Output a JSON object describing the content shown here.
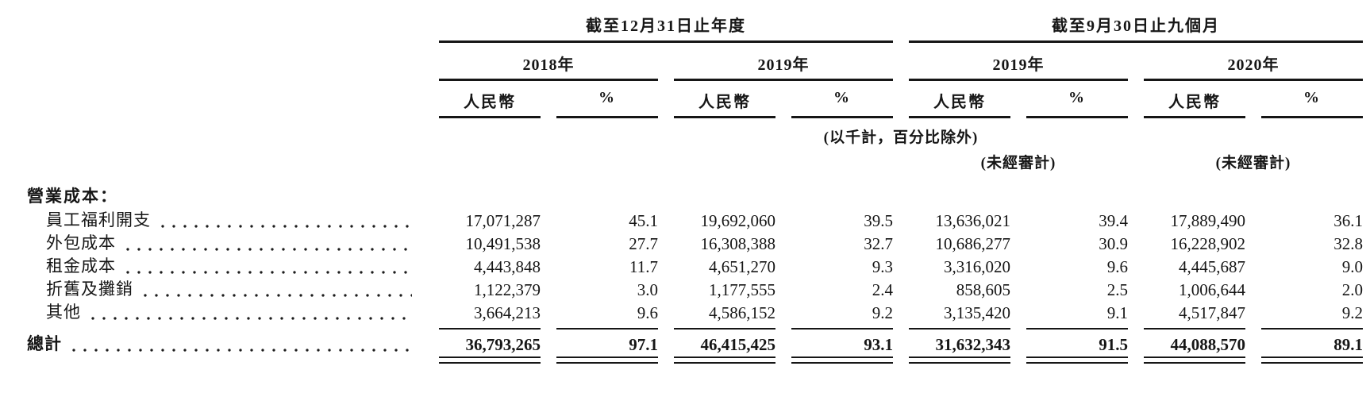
{
  "table": {
    "period_groups": [
      {
        "title": "截至12月31日止年度",
        "years": [
          "2018年",
          "2019年"
        ]
      },
      {
        "title": "截至9月30日止九個月",
        "years": [
          "2019年",
          "2020年"
        ]
      }
    ],
    "column_headers": {
      "currency": "人民幣",
      "percent": "%"
    },
    "notes": {
      "units": "(以千計，百分比除外)",
      "unaudited": "(未經審計)"
    },
    "section_header": "營業成本：",
    "rows": [
      {
        "label": "員工福利開支",
        "values": [
          "17,071,287",
          "45.1",
          "19,692,060",
          "39.5",
          "13,636,021",
          "39.4",
          "17,889,490",
          "36.1"
        ]
      },
      {
        "label": "外包成本",
        "values": [
          "10,491,538",
          "27.7",
          "16,308,388",
          "32.7",
          "10,686,277",
          "30.9",
          "16,228,902",
          "32.8"
        ]
      },
      {
        "label": "租金成本",
        "values": [
          "4,443,848",
          "11.7",
          "4,651,270",
          "9.3",
          "3,316,020",
          "9.6",
          "4,445,687",
          "9.0"
        ]
      },
      {
        "label": "折舊及攤銷",
        "values": [
          "1,122,379",
          "3.0",
          "1,177,555",
          "2.4",
          "858,605",
          "2.5",
          "1,006,644",
          "2.0"
        ]
      },
      {
        "label": "其他",
        "values": [
          "3,664,213",
          "9.6",
          "4,586,152",
          "9.2",
          "3,135,420",
          "9.1",
          "4,517,847",
          "9.2"
        ]
      }
    ],
    "total_row": {
      "label": "總計",
      "values": [
        "36,793,265",
        "97.1",
        "46,415,425",
        "93.1",
        "31,632,343",
        "91.5",
        "44,088,570",
        "89.1"
      ]
    },
    "colors": {
      "ink": "#161616",
      "background": "#ffffff"
    }
  }
}
